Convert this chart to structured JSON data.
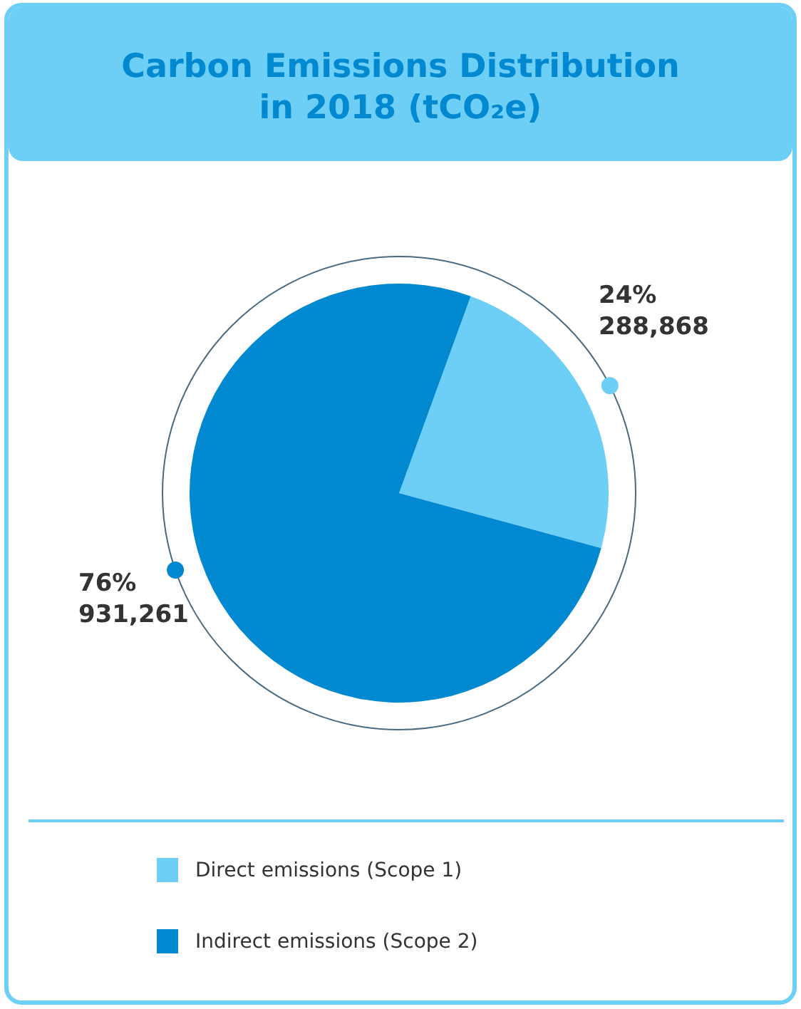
{
  "chart_data": {
    "type": "pie",
    "title": "Carbon Emissions Distribution in 2018 (tCO₂e)",
    "categories": [
      "Direct emissions (Scope 1)",
      "Indirect emissions (Scope 2)"
    ],
    "values": [
      288868,
      931261
    ],
    "colors": [
      "#6dcff6",
      "#0089d0"
    ],
    "value_labels": [
      "24%\n288,868",
      "76%\n931,261"
    ],
    "legend": "bottom"
  }
}
